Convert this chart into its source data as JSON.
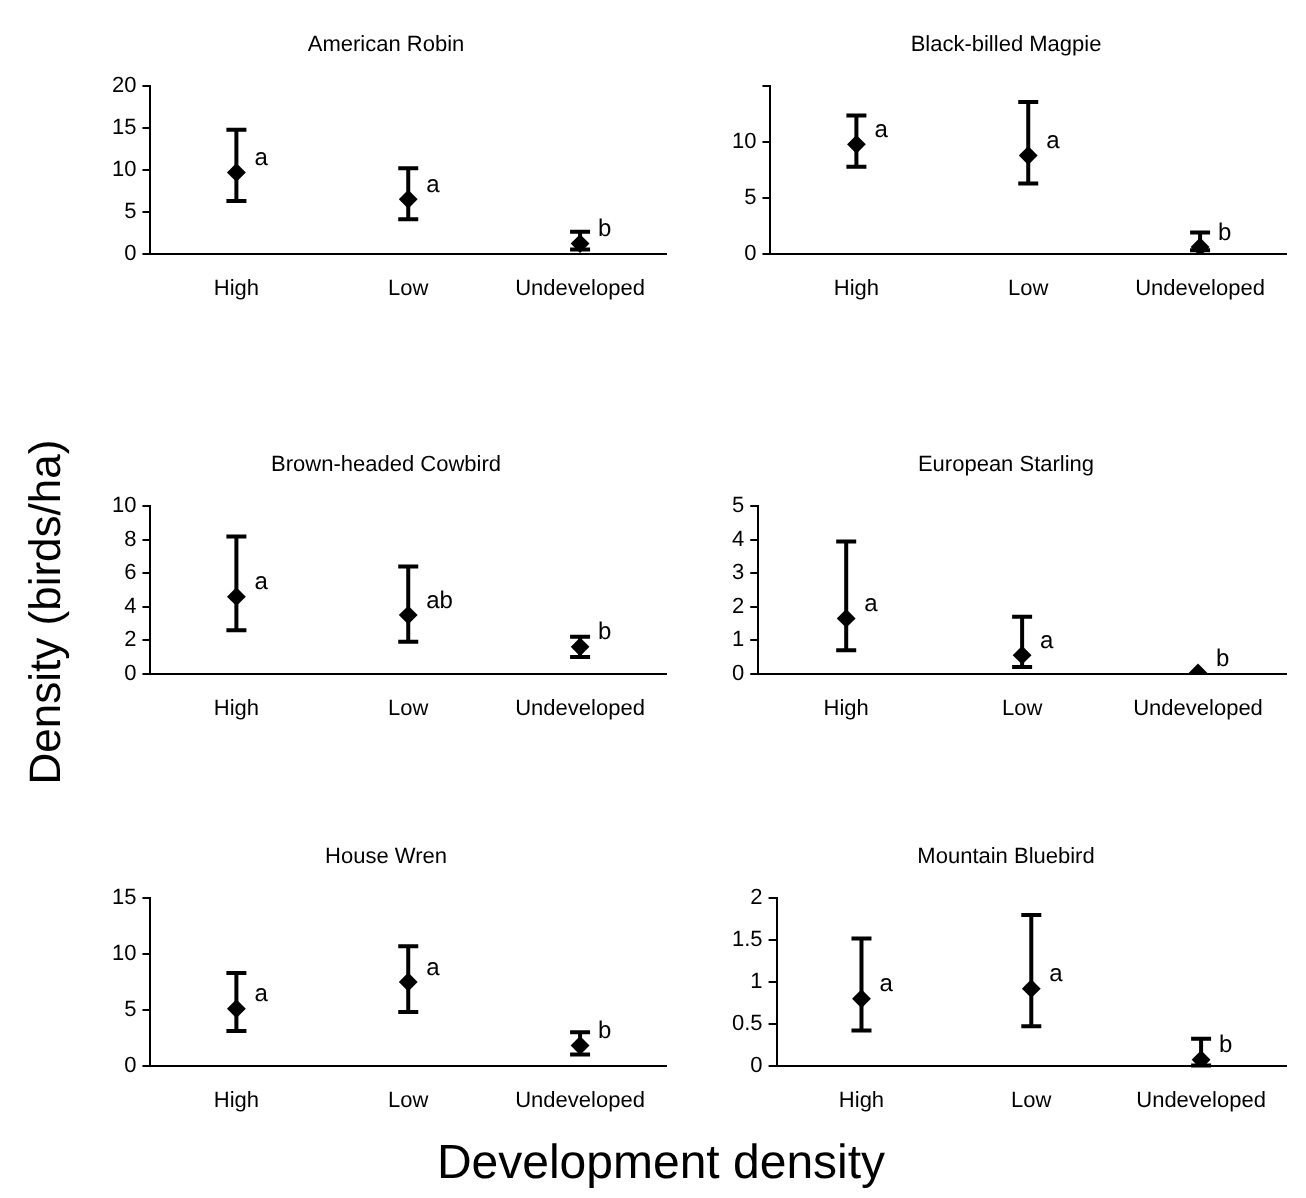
{
  "chart_data": [
    {
      "type": "scatter",
      "title": "American Robin",
      "categories": [
        "High",
        "Low",
        "Undeveloped"
      ],
      "values": [
        9.7,
        6.5,
        1.2
      ],
      "errors": [
        [
          6.3,
          14.8
        ],
        [
          4.1,
          10.2
        ],
        [
          0.5,
          2.6
        ]
      ],
      "color": "#000000",
      "marker": "diamond",
      "ylim": [
        0,
        20
      ],
      "yticks": [
        0,
        5,
        10,
        15,
        20
      ],
      "annotations": [
        {
          "text": "a",
          "x": "High",
          "y": 9.7
        },
        {
          "text": "a",
          "x": "Low",
          "y": 6.5
        },
        {
          "text": "b",
          "x": "Undeveloped",
          "y": 1.2
        }
      ]
    },
    {
      "type": "scatter",
      "title": "Black-billed Magpie",
      "categories": [
        "High",
        "Low",
        "Undeveloped"
      ],
      "values": [
        9.8,
        8.8,
        0.6
      ],
      "errors": [
        [
          7.8,
          12.4
        ],
        [
          6.3,
          13.6
        ],
        [
          0.3,
          1.9
        ]
      ],
      "color": "#000000",
      "marker": "diamond",
      "ylim": [
        0,
        15
      ],
      "yticks": [
        0,
        5,
        10,
        {
          "value": 15,
          "label": null
        }
      ],
      "annotations": [
        {
          "text": "a",
          "x": "High",
          "y": 9.8
        },
        {
          "text": "a",
          "x": "Low",
          "y": 8.8
        },
        {
          "text": "b",
          "x": "Undeveloped",
          "y": 0.6
        }
      ]
    },
    {
      "type": "scatter",
      "title": "Brown-headed Cowbird",
      "ylabel": "Density (birds/ha)",
      "categories": [
        "High",
        "Low",
        "Undeveloped"
      ],
      "values": [
        4.6,
        3.5,
        1.6
      ],
      "errors": [
        [
          2.6,
          8.2
        ],
        [
          1.9,
          6.4
        ],
        [
          1.0,
          2.2
        ]
      ],
      "color": "#000000",
      "marker": "diamond",
      "ylim": [
        0,
        10
      ],
      "yticks": [
        0,
        2,
        4,
        6,
        8,
        10
      ],
      "annotations": [
        {
          "text": "a",
          "x": "High",
          "y": 4.6
        },
        {
          "text": "ab",
          "x": "Low",
          "y": 3.5
        },
        {
          "text": "b",
          "x": "Undeveloped",
          "y": 1.6
        }
      ]
    },
    {
      "type": "scatter",
      "title": "European Starling",
      "categories": [
        "High",
        "Low",
        "Undeveloped"
      ],
      "values": [
        1.65,
        0.55,
        0.02
      ],
      "errors": [
        [
          0.7,
          3.95
        ],
        [
          0.2,
          1.7
        ],
        null
      ],
      "color": "#000000",
      "marker": "diamond",
      "ylim": [
        0,
        5
      ],
      "yticks": [
        0,
        1,
        2,
        3,
        4,
        5
      ],
      "annotations": [
        {
          "text": "a",
          "x": "High",
          "y": 1.65
        },
        {
          "text": "a",
          "x": "Low",
          "y": 0.55
        },
        {
          "text": "b",
          "x": "Undeveloped",
          "y": 0.02
        }
      ]
    },
    {
      "type": "scatter",
      "title": "House Wren",
      "xlabel": "Development density",
      "categories": [
        "High",
        "Low",
        "Undeveloped"
      ],
      "values": [
        5.1,
        7.5,
        1.8
      ],
      "errors": [
        [
          3.1,
          8.3
        ],
        [
          4.8,
          10.7
        ],
        [
          1.0,
          3.0
        ]
      ],
      "color": "#000000",
      "marker": "diamond",
      "ylim": [
        0,
        15
      ],
      "yticks": [
        0,
        5,
        10,
        15
      ],
      "annotations": [
        {
          "text": "a",
          "x": "High",
          "y": 5.1
        },
        {
          "text": "a",
          "x": "Low",
          "y": 7.5
        },
        {
          "text": "b",
          "x": "Undeveloped",
          "y": 1.8
        }
      ]
    },
    {
      "type": "scatter",
      "title": "Mountain Bluebird",
      "categories": [
        "High",
        "Low",
        "Undeveloped"
      ],
      "values": [
        0.8,
        0.92,
        0.07
      ],
      "errors": [
        [
          0.42,
          1.52
        ],
        [
          0.47,
          1.8
        ],
        [
          0,
          0.32
        ]
      ],
      "color": "#000000",
      "marker": "diamond",
      "ylim": [
        0,
        2
      ],
      "yticks": [
        0,
        0.5,
        1,
        1.5,
        2
      ],
      "annotations": [
        {
          "text": "a",
          "x": "High",
          "y": 0.8
        },
        {
          "text": "a",
          "x": "Low",
          "y": 0.92
        },
        {
          "text": "b",
          "x": "Undeveloped",
          "y": 0.07
        }
      ]
    }
  ]
}
